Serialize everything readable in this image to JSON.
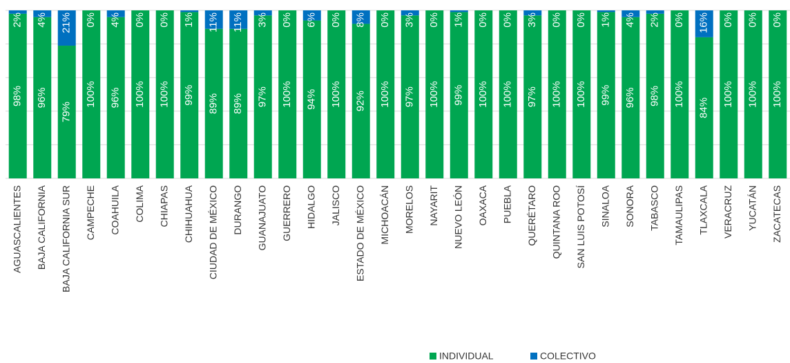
{
  "chart_data": {
    "type": "stacked_bar",
    "categories": [
      "AGUASCALIENTES",
      "BAJA CALIFORNIA",
      "BAJA CALIFORNIA SUR",
      "CAMPECHE",
      "COAHUILA",
      "COLIMA",
      "CHIAPAS",
      "CHIHUAHUA",
      "CIUDAD DE MÉXICO",
      "DURANGO",
      "GUANAJUATO",
      "GUERRERO",
      "HIDALGO",
      "JALISCO",
      "ESTADO DE MÉXICO",
      "MICHOACÁN",
      "MORELOS",
      "NAYARIT",
      "NUEVO LEÓN",
      "OAXACA",
      "PUEBLA",
      "QUERÉTARO",
      "QUINTANA ROO",
      "SAN LUIS POTOSÍ",
      "SINALOA",
      "SONORA",
      "TABASCO",
      "TAMAULIPAS",
      "TLAXCALA",
      "VERACRUZ",
      "YUCATÁN",
      "ZACATECAS"
    ],
    "series": [
      {
        "name": "INDIVIDUAL",
        "color": "#00a651",
        "values": [
          98,
          96,
          79,
          100,
          96,
          100,
          100,
          99,
          89,
          89,
          97,
          100,
          94,
          100,
          92,
          100,
          97,
          100,
          99,
          100,
          100,
          97,
          100,
          100,
          99,
          96,
          98,
          100,
          84,
          100,
          100,
          100
        ],
        "value_labels": [
          "98%",
          "96%",
          "79%",
          "100%",
          "96%",
          "100%",
          "100%",
          "99%",
          "89%",
          "89%",
          "97%",
          "100%",
          "94%",
          "100%",
          "92%",
          "100%",
          "97%",
          "100%",
          "99%",
          "100%",
          "100%",
          "97%",
          "100%",
          "100%",
          "99%",
          "96%",
          "98%",
          "100%",
          "84%",
          "100%",
          "100%",
          "100%"
        ]
      },
      {
        "name": "COLECTIVO",
        "color": "#0070c0",
        "values": [
          2,
          4,
          21,
          0,
          4,
          0,
          0,
          1,
          11,
          11,
          3,
          0,
          6,
          0,
          8,
          0,
          3,
          0,
          1,
          0,
          0,
          3,
          0,
          0,
          1,
          4,
          2,
          0,
          16,
          0,
          0,
          0
        ],
        "value_labels": [
          "2%",
          "4%",
          "21%",
          "0%",
          "4%",
          "0%",
          "0%",
          "1%",
          "11%",
          "11%",
          "3%",
          "0%",
          "6%",
          "0%",
          "8%",
          "0%",
          "3%",
          "0%",
          "1%",
          "0%",
          "0%",
          "3%",
          "0%",
          "0%",
          "1%",
          "4%",
          "2%",
          "0%",
          "16%",
          "0%",
          "0%",
          "0%"
        ]
      }
    ],
    "ylim": [
      0,
      100
    ],
    "yticks": [
      0,
      20,
      40,
      60,
      80,
      100
    ],
    "grid": true,
    "legend": "bottom"
  }
}
